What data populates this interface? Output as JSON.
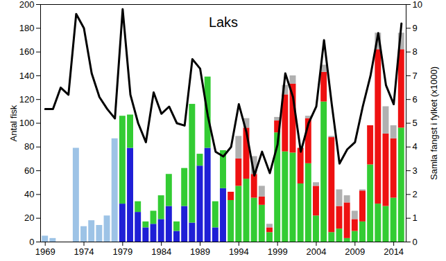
{
  "chart_data": {
    "type": "bar",
    "title": "Laks",
    "ylabel": "Antal fisk",
    "y2label": "Samla fangst i fylket (x1000)",
    "stacked": true,
    "grid": false,
    "x": [
      1969,
      1970,
      1971,
      1972,
      1973,
      1974,
      1975,
      1976,
      1977,
      1978,
      1979,
      1980,
      1981,
      1982,
      1983,
      1984,
      1985,
      1986,
      1987,
      1988,
      1989,
      1990,
      1991,
      1992,
      1993,
      1994,
      1995,
      1996,
      1997,
      1998,
      1999,
      2000,
      2001,
      2002,
      2003,
      2004,
      2005,
      2006,
      2007,
      2008,
      2009,
      2010,
      2011,
      2012,
      2013,
      2014,
      2015
    ],
    "xlim": [
      1968.4,
      2015.6
    ],
    "xticks": [
      1969,
      1974,
      1979,
      1984,
      1989,
      1994,
      1999,
      2004,
      2009,
      2014
    ],
    "ylim": [
      0,
      200
    ],
    "yticks": [
      0,
      20,
      40,
      60,
      80,
      100,
      120,
      140,
      160,
      180,
      200
    ],
    "y2lim": [
      0,
      10
    ],
    "y2ticks": [
      0,
      1,
      2,
      3,
      4,
      5,
      6,
      7,
      8,
      9,
      10
    ],
    "series": [
      {
        "type": "bar",
        "color": "#9dc3e6",
        "values": [
          5,
          3,
          0,
          0,
          79,
          13,
          18,
          14,
          22,
          87,
          null,
          null,
          null,
          null,
          null,
          null,
          null,
          null,
          null,
          null,
          null,
          null,
          null,
          null,
          null,
          null,
          null,
          null,
          null,
          null,
          null,
          null,
          null,
          null,
          null,
          null,
          null,
          null,
          null,
          null,
          null,
          null,
          null,
          null,
          null,
          null,
          null
        ]
      },
      {
        "type": "bar",
        "color": "#1f1fd6",
        "values": [
          null,
          null,
          null,
          null,
          null,
          null,
          null,
          null,
          null,
          null,
          32,
          79,
          25,
          12,
          15,
          19,
          30,
          9,
          30,
          16,
          64,
          79,
          12,
          45,
          null,
          null,
          null,
          null,
          null,
          null,
          null,
          null,
          null,
          null,
          null,
          null,
          null,
          null,
          null,
          null,
          null,
          null,
          null,
          null,
          null,
          null,
          null
        ]
      },
      {
        "type": "bar",
        "color": "#33cc33",
        "values": [
          null,
          null,
          null,
          null,
          null,
          null,
          null,
          null,
          null,
          null,
          74,
          28,
          9,
          5,
          11,
          20,
          27,
          8,
          32,
          100,
          10,
          60,
          22,
          32,
          35,
          47,
          53,
          37,
          31,
          8,
          92,
          76,
          75,
          49,
          66,
          22,
          118,
          8,
          11,
          3,
          9,
          17,
          65,
          32,
          30,
          37,
          96
        ]
      },
      {
        "type": "bar",
        "color": "#ee1111",
        "values": [
          null,
          null,
          null,
          null,
          null,
          null,
          null,
          null,
          null,
          null,
          null,
          null,
          null,
          null,
          null,
          null,
          null,
          null,
          null,
          null,
          null,
          null,
          null,
          null,
          7,
          23,
          43,
          20,
          7,
          4,
          10,
          48,
          58,
          30,
          38,
          25,
          25,
          80,
          19,
          30,
          10,
          26,
          33,
          130,
          61,
          50,
          66
        ]
      },
      {
        "type": "bar",
        "color": "#b0b0b0",
        "values": [
          null,
          null,
          null,
          null,
          null,
          null,
          null,
          null,
          null,
          null,
          null,
          null,
          null,
          null,
          null,
          null,
          null,
          null,
          null,
          null,
          null,
          null,
          null,
          null,
          null,
          19,
          8,
          15,
          9,
          3,
          3,
          8,
          7,
          null,
          2,
          3,
          6,
          1,
          14,
          6,
          7,
          1,
          null,
          14,
          23,
          11,
          14
        ]
      },
      {
        "type": "line",
        "axis": "y2",
        "color": "#000000",
        "values": [
          5.6,
          5.6,
          6.5,
          6.2,
          9.6,
          9.0,
          7.1,
          6.1,
          5.6,
          5.2,
          9.8,
          6.2,
          5.0,
          4.2,
          6.3,
          5.4,
          5.7,
          5.0,
          4.9,
          7.7,
          7.3,
          5.3,
          3.8,
          3.6,
          4.0,
          5.8,
          4.6,
          2.8,
          3.8,
          2.9,
          4.1,
          7.1,
          6.1,
          3.8,
          5.0,
          5.7,
          8.5,
          5.8,
          3.3,
          3.9,
          4.2,
          5.7,
          7.0,
          8.8,
          6.6,
          5.8,
          9.2
        ]
      }
    ]
  }
}
